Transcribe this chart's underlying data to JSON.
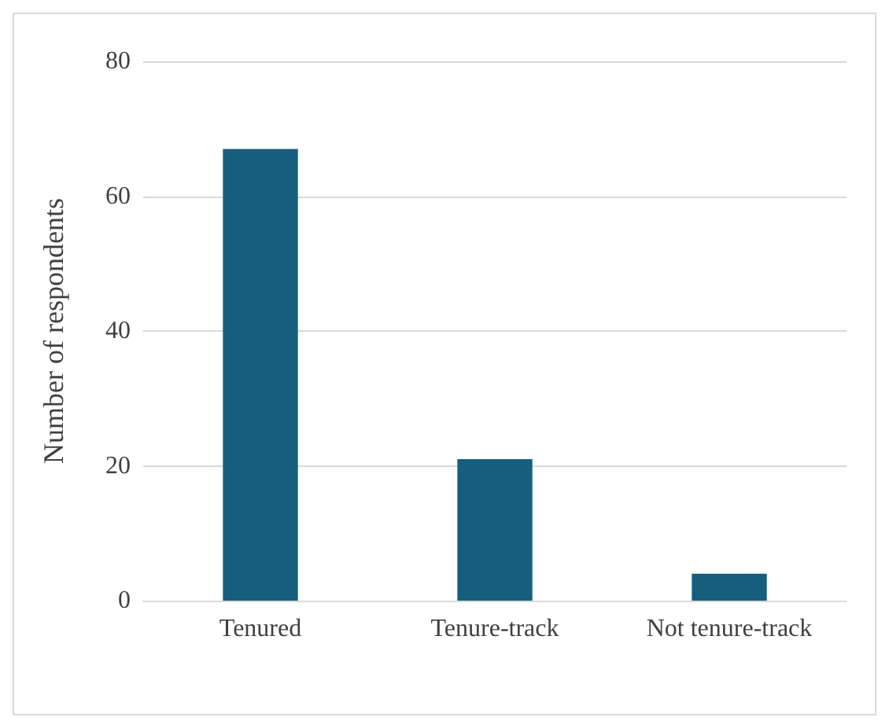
{
  "chart_data": {
    "type": "bar",
    "ylabel": "Number of respondents",
    "categories": [
      "Tenured",
      "Tenure-track",
      "Not tenure-track"
    ],
    "values": [
      67,
      21,
      4
    ],
    "color": "#175e7e",
    "ylim": [
      0,
      80
    ],
    "yticks": [
      0,
      20,
      40,
      60,
      80
    ],
    "grid": "y"
  }
}
